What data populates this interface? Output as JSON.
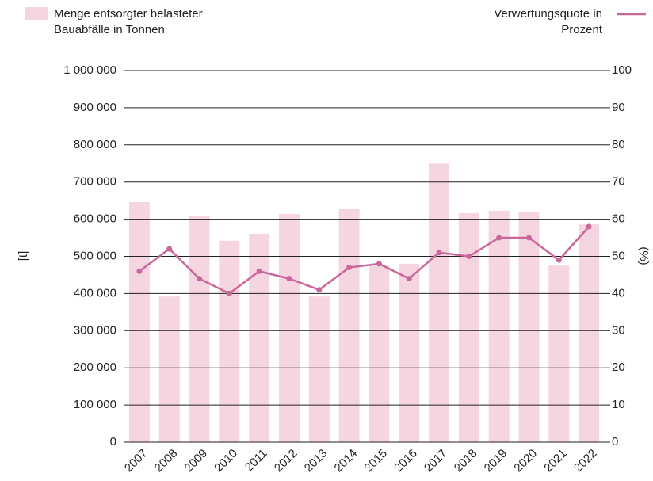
{
  "chart_data": {
    "type": "bar+line",
    "categories": [
      "2007",
      "2008",
      "2009",
      "2010",
      "2011",
      "2012",
      "2013",
      "2014",
      "2015",
      "2016",
      "2017",
      "2018",
      "2019",
      "2020",
      "2021",
      "2022"
    ],
    "series": [
      {
        "name": "Menge entsorgter belasteter Bauabfälle in Tonnen",
        "type": "bar",
        "color": "#f5d6e0",
        "axis": "y",
        "values": [
          646000,
          392000,
          608000,
          542000,
          561000,
          614000,
          392000,
          627000,
          475000,
          480000,
          750000,
          616000,
          623000,
          620000,
          475000,
          586000
        ]
      },
      {
        "name": "Verwertungsquote in Prozent",
        "type": "line",
        "color": "#c9679a",
        "axis": "y2",
        "values": [
          46,
          52,
          44,
          40,
          46,
          44,
          41,
          47,
          48,
          44,
          51,
          50,
          55,
          55,
          49,
          58
        ]
      }
    ],
    "ylabel": "[t]",
    "y2label": "(%)",
    "ylim": [
      0,
      1000000
    ],
    "yticks": [
      0,
      {
        "value": 100000,
        "label": "100 000"
      },
      {
        "value": 200000,
        "label": "200 000"
      },
      {
        "value": 300000,
        "label": "300 000"
      },
      {
        "value": 400000,
        "label": "400 000"
      },
      {
        "value": 500000,
        "label": "500 000"
      },
      {
        "value": 600000,
        "label": "600 000"
      },
      {
        "value": 700000,
        "label": "700 000"
      },
      {
        "value": 800000,
        "label": "800 000"
      },
      {
        "value": 900000,
        "label": "900 000"
      },
      {
        "value": 1000000,
        "label": "1 000 000"
      }
    ],
    "y2lim": [
      0,
      100
    ],
    "y2ticks": [
      0,
      10,
      20,
      30,
      40,
      50,
      60,
      70,
      80,
      90,
      100
    ],
    "grid": true
  }
}
